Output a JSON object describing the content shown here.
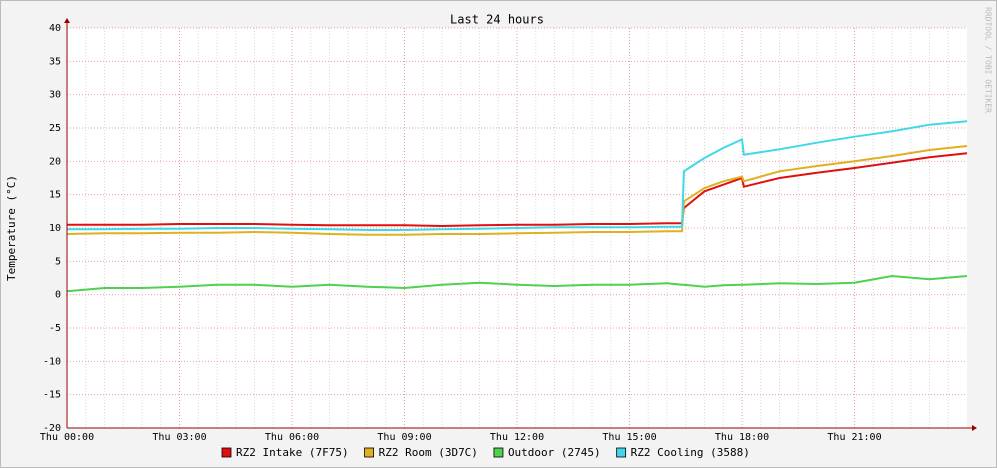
{
  "chart_data": {
    "type": "line",
    "title": "Last 24 hours",
    "y_label": "Temperature (°C)",
    "watermark": "RRDTOOL / TOBI OETIKER",
    "x": [
      0,
      1,
      2,
      3,
      4,
      5,
      6,
      7,
      8,
      9,
      10,
      11,
      12,
      13,
      14,
      15,
      16,
      16.4,
      16.45,
      17,
      17.5,
      18,
      18.05,
      19,
      20,
      21,
      22,
      23,
      24
    ],
    "xlim": [
      0,
      24
    ],
    "xticks": [
      {
        "value": 0,
        "label": "Thu 00:00"
      },
      {
        "value": 3,
        "label": "Thu 03:00"
      },
      {
        "value": 6,
        "label": "Thu 06:00"
      },
      {
        "value": 9,
        "label": "Thu 09:00"
      },
      {
        "value": 12,
        "label": "Thu 12:00"
      },
      {
        "value": 15,
        "label": "Thu 15:00"
      },
      {
        "value": 18,
        "label": "Thu 18:00"
      },
      {
        "value": 21,
        "label": "Thu 21:00"
      }
    ],
    "ylim": [
      -20,
      40
    ],
    "yticks": [
      -20,
      -15,
      -10,
      -5,
      0,
      5,
      10,
      15,
      20,
      25,
      30,
      35,
      40
    ],
    "grid": true,
    "series": [
      {
        "name": "RZ2 Intake (7F75)",
        "color": "#e01010",
        "values": [
          10.5,
          10.5,
          10.5,
          10.6,
          10.6,
          10.6,
          10.5,
          10.4,
          10.4,
          10.4,
          10.3,
          10.4,
          10.5,
          10.5,
          10.6,
          10.6,
          10.7,
          10.7,
          13,
          15.5,
          16.5,
          17.5,
          16.2,
          17.5,
          18.3,
          19,
          19.8,
          20.6,
          21.2
        ]
      },
      {
        "name": "RZ2 Room (3D7C)",
        "color": "#e0b020",
        "values": [
          9.1,
          9.2,
          9.2,
          9.3,
          9.3,
          9.4,
          9.3,
          9.1,
          9.0,
          9.0,
          9.1,
          9.1,
          9.2,
          9.3,
          9.4,
          9.4,
          9.5,
          9.5,
          14,
          16,
          17,
          17.7,
          17,
          18.5,
          19.3,
          20,
          20.8,
          21.7,
          22.3
        ]
      },
      {
        "name": "Outdoor (2745)",
        "color": "#50d050",
        "values": [
          0.5,
          1,
          1,
          1.2,
          1.5,
          1.5,
          1.2,
          1.5,
          1.2,
          1,
          1.5,
          1.8,
          1.5,
          1.3,
          1.5,
          1.5,
          1.7,
          1.5,
          1.5,
          1.2,
          1.4,
          1.5,
          1.5,
          1.7,
          1.6,
          1.8,
          2.8,
          2.3,
          2.8
        ]
      },
      {
        "name": "RZ2 Cooling (3588)",
        "color": "#40d8e8",
        "values": [
          9.8,
          9.8,
          9.9,
          9.9,
          10,
          10,
          9.9,
          9.8,
          9.7,
          9.7,
          9.8,
          9.9,
          10,
          10.1,
          10.1,
          10.1,
          10.2,
          10.2,
          18.5,
          20.5,
          22,
          23.3,
          21,
          21.8,
          22.8,
          23.7,
          24.5,
          25.5,
          26
        ]
      }
    ]
  }
}
